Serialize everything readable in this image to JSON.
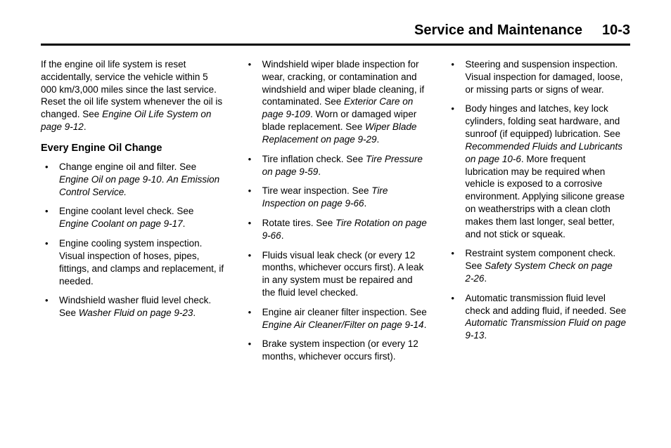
{
  "header": {
    "title": "Service and Maintenance",
    "page": "10-3"
  },
  "col1": {
    "intro_a": "If the engine oil life system is reset accidentally, service the vehicle within 5 000 km/3,000 miles since the last service. Reset the oil life system whenever the oil is changed. See ",
    "intro_ref": "Engine Oil Life System on page 9‑12",
    "intro_b": ".",
    "subhead": "Every Engine Oil Change",
    "b1_a": "Change engine oil and filter. See ",
    "b1_ref": "Engine Oil on page 9‑10",
    "b1_b": ". ",
    "b1_ref2": "An Emission Control Service.",
    "b2_a": "Engine coolant level check. See ",
    "b2_ref": "Engine Coolant on page 9‑17",
    "b2_b": ".",
    "b3": "Engine cooling system inspection. Visual inspection of hoses, pipes, fittings, and clamps and replacement, if needed.",
    "b4_a": "Windshield washer fluid level check. See ",
    "b4_ref": "Washer Fluid on page 9‑23",
    "b4_b": "."
  },
  "col2": {
    "b1_a": "Windshield wiper blade inspection for wear, cracking, or contamination and windshield and wiper blade cleaning, if contaminated. See ",
    "b1_ref": "Exterior Care on page 9‑109",
    "b1_b": ". Worn or damaged wiper blade replacement. See ",
    "b1_ref2": "Wiper Blade Replacement on page 9‑29",
    "b1_c": ".",
    "b2_a": "Tire inflation check. See ",
    "b2_ref": "Tire Pressure on page 9‑59",
    "b2_b": ".",
    "b3_a": "Tire wear inspection. See ",
    "b3_ref": "Tire Inspection on page 9‑66",
    "b3_b": ".",
    "b4_a": "Rotate tires. See ",
    "b4_ref": "Tire Rotation on page 9‑66",
    "b4_b": ".",
    "b5": "Fluids visual leak check (or every 12 months, whichever occurs first). A leak in any system must be repaired and the fluid level checked.",
    "b6_a": "Engine air cleaner filter inspection. See ",
    "b6_ref": "Engine Air Cleaner/Filter on page 9‑14",
    "b6_b": ".",
    "b7": "Brake system inspection (or every 12 months, whichever occurs first)."
  },
  "col3": {
    "b1": "Steering and suspension inspection. Visual inspection for damaged, loose, or missing parts or signs of wear.",
    "b2_a": "Body hinges and latches, key lock cylinders, folding seat hardware, and sunroof (if equipped) lubrication. See ",
    "b2_ref": "Recommended Fluids and Lubricants on page 10‑6",
    "b2_b": ". More frequent lubrication may be required when vehicle is exposed to a corrosive environment. Applying silicone grease on weatherstrips with a clean cloth makes them last longer, seal better, and not stick or squeak.",
    "b3_a": "Restraint system component check. See ",
    "b3_ref": "Safety System Check on page 2‑26",
    "b3_b": ".",
    "b4_a": "Automatic transmission fluid level check and adding fluid, if needed. See ",
    "b4_ref": "Automatic Transmission Fluid on page 9‑13",
    "b4_b": "."
  }
}
